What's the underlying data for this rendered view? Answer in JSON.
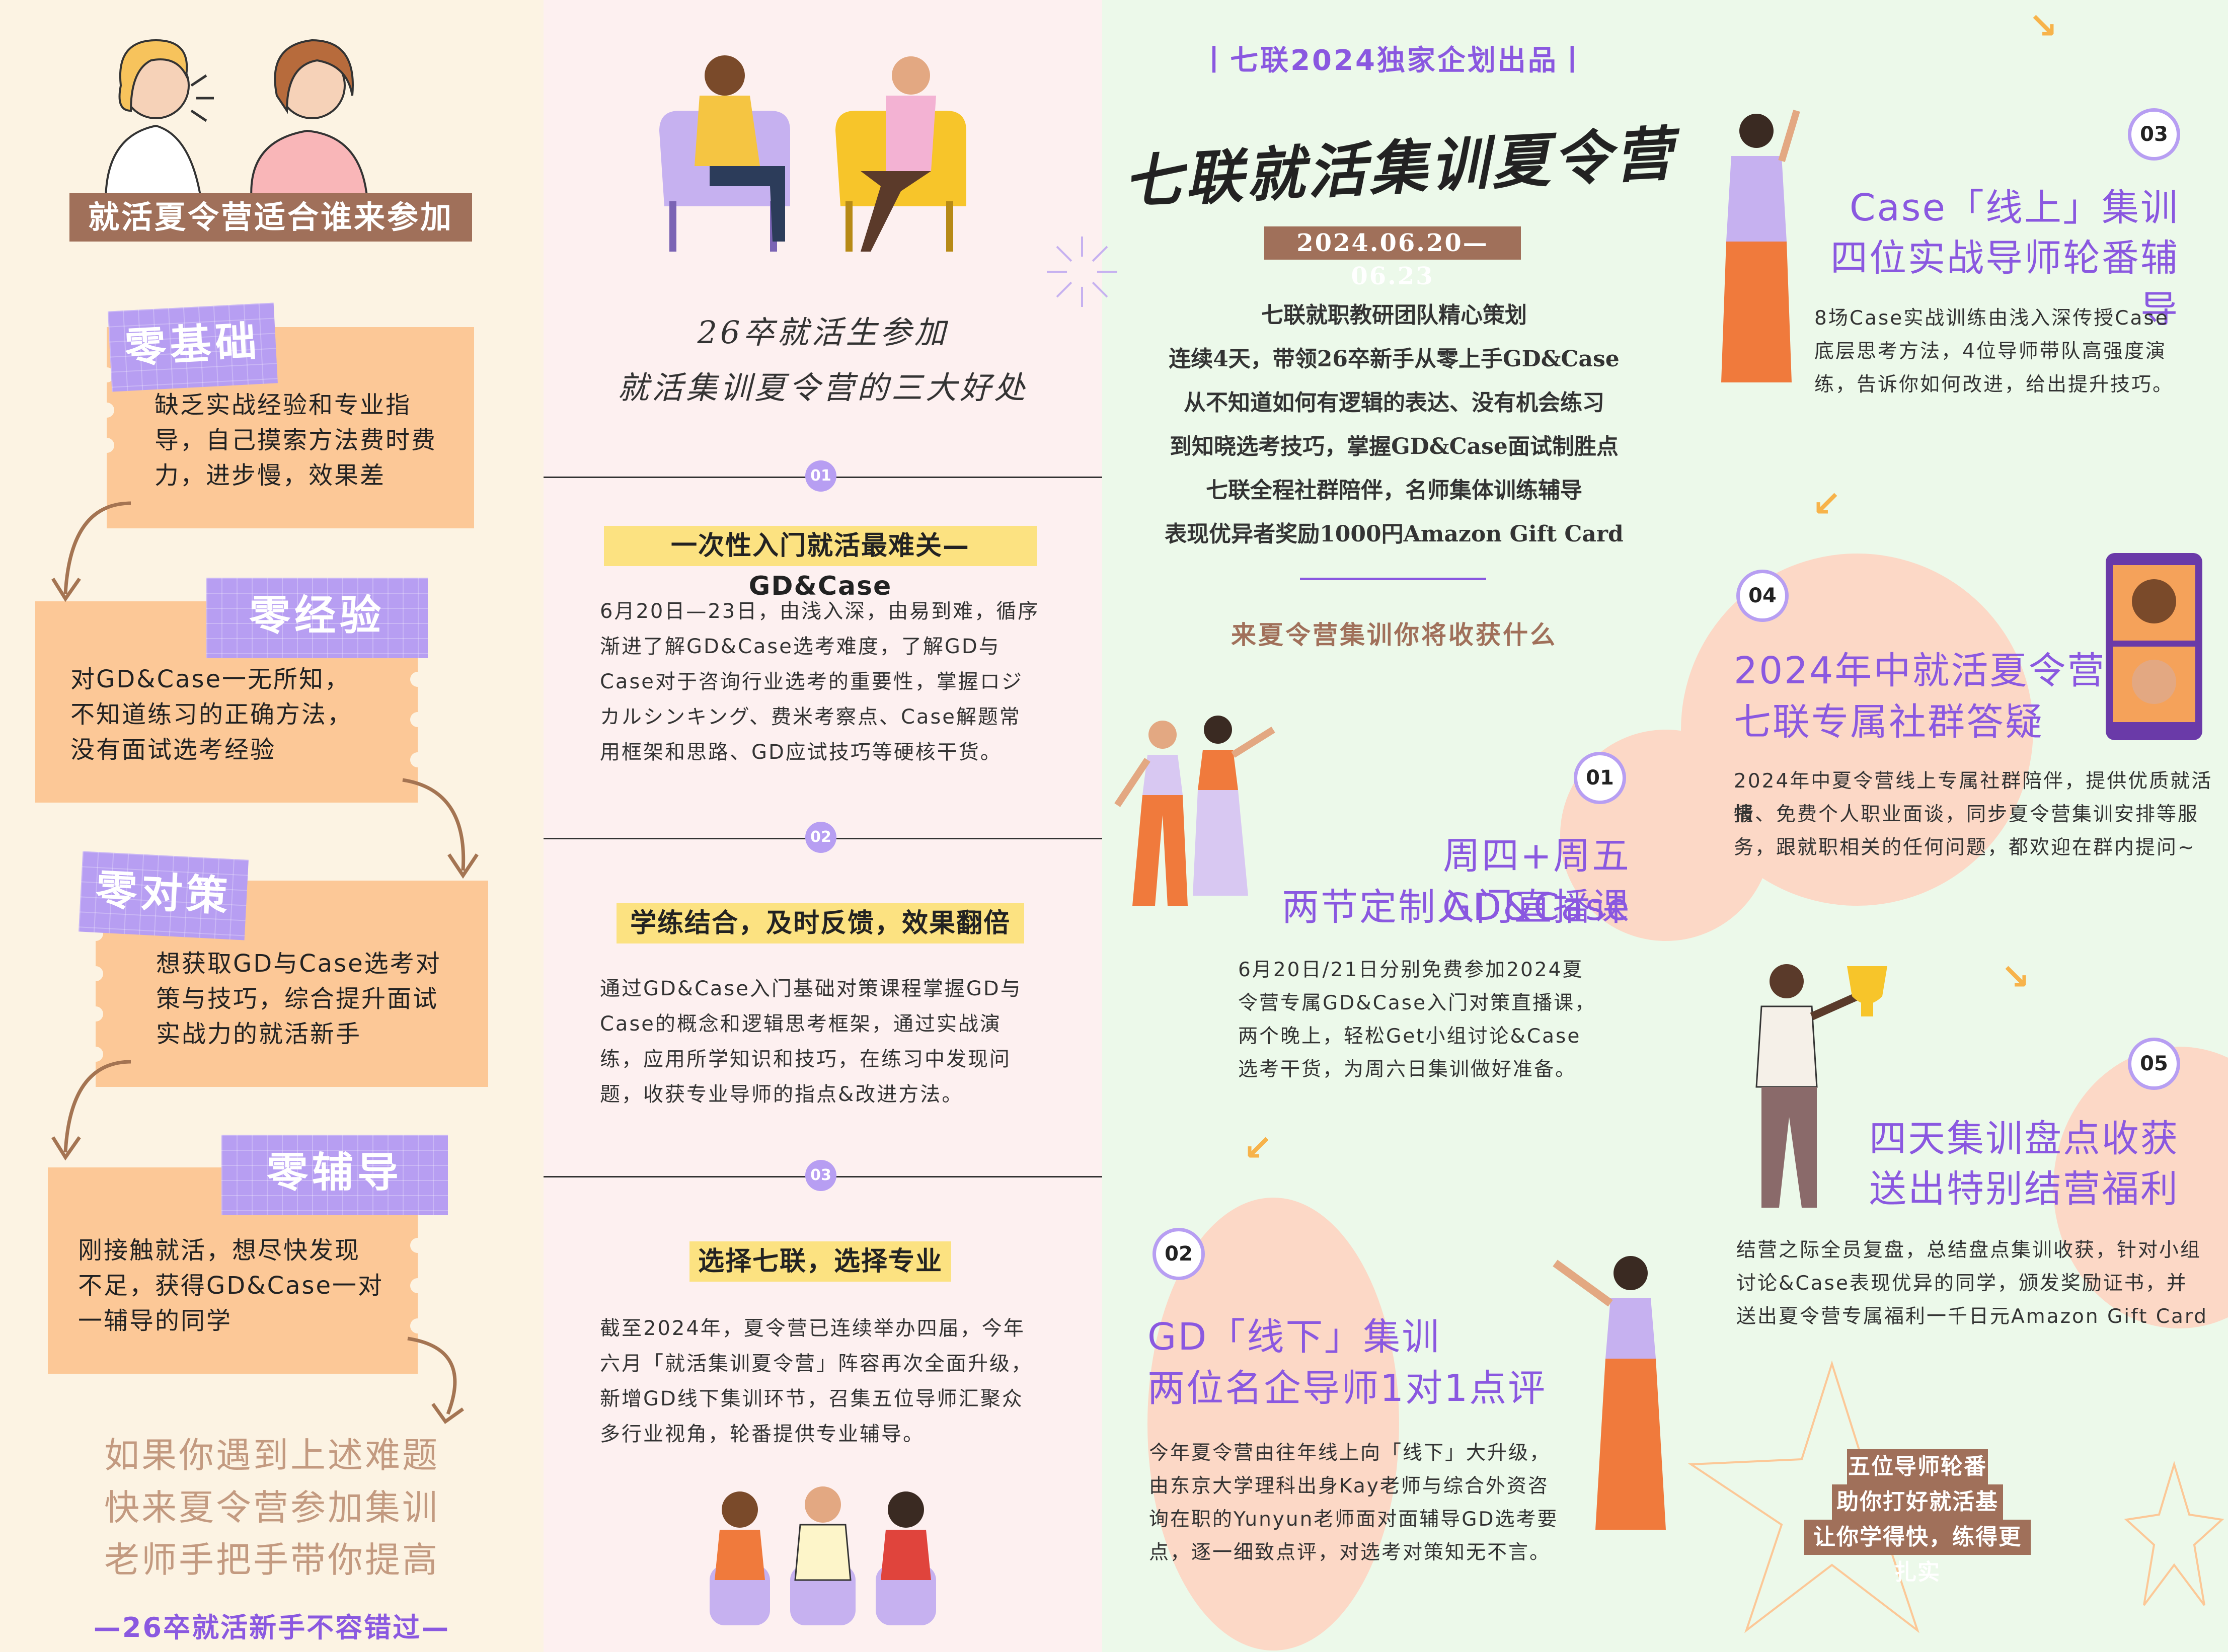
{
  "panel_left": {
    "title": "就活夏令营适合谁来参加",
    "cards": [
      {
        "tag": "零基础",
        "lines": [
          "缺乏实战经验和专业指",
          "导，自己摸索方法费时费",
          "力，进步慢，效果差"
        ]
      },
      {
        "tag": "零经验",
        "lines": [
          "对GD&Case一无所知，",
          "不知道练习的正确方法，",
          "没有面试选考经验"
        ]
      },
      {
        "tag": "零对策",
        "lines": [
          "想获取GD与Case选考对",
          "策与技巧，综合提升面试",
          "实战力的就活新手"
        ]
      },
      {
        "tag": "零辅导",
        "lines": [
          "刚接触就活，想尽快发现",
          "不足，获得GD&Case一对",
          "一辅导的同学"
        ]
      }
    ],
    "closing": [
      "如果你遇到上述难题",
      "快来夏令营参加集训",
      "老师手把手带你提高"
    ],
    "footer": "—26卒就活新手不容错过—"
  },
  "panel_mid": {
    "heading": [
      "26卒就活生参加",
      "就活集训夏令营的三大好处"
    ],
    "sections": [
      {
        "num": "01",
        "title": "一次性入门就活最难关—GD&Case",
        "lines": [
          "6月20日—23日，由浅入深，由易到难，循序",
          "渐进了解GD&Case选考难度，了解GD与",
          "Case对于咨询行业选考的重要性，掌握ロジ",
          "カルシンキング、费米考察点、Case解题常",
          "用框架和思路、GD应试技巧等硬核干货。"
        ]
      },
      {
        "num": "02",
        "title": "学练结合，及时反馈，效果翻倍",
        "lines": [
          "通过GD&Case入门基础对策课程掌握GD与",
          "Case的概念和逻辑思考框架，通过实战演",
          "练，应用所学知识和技巧，在练习中发现问",
          "题，收获专业导师的指点&改进方法。"
        ]
      },
      {
        "num": "03",
        "title": "选择七联，选择专业",
        "lines": [
          "截至2024年，夏令营已连续举办四届，今年",
          "六月「就活集训夏令营」阵容再次全面升级，",
          "新增GD线下集训环节，召集五位导师汇聚众",
          "多行业视角，轮番提供专业辅导。"
        ]
      }
    ]
  },
  "panel_right": {
    "brand": "丨七联2024独家企划出品丨",
    "main_title": "七联就活集训夏令营",
    "date": "2024.06.20—06.23",
    "intro": [
      "七联就职教研团队精心策划",
      "连续4天，带领26卒新手从零上手GD&Case",
      "从不知道如何有逻辑的表达、没有机会练习",
      "到知晓选考技巧，掌握GD&Case面试制胜点",
      "七联全程社群陪伴，名师集体训练辅导",
      "表现优异者奖励1000円Amazon Gift Card"
    ],
    "gain_heading": "来夏令营集训你将收获什么",
    "items": [
      {
        "num": "01",
        "title": [
          "周四+周五GD&Case",
          "两节定制入门直播课"
        ],
        "lines": [
          "6月20日/21日分别免费参加2024夏",
          "令营专属GD&Case入门对策直播课，",
          "两个晚上，轻松Get小组讨论&Case",
          "选考干货，为周六日集训做好准备。"
        ]
      },
      {
        "num": "02",
        "title": [
          "GD「线下」集训",
          "两位名企导师1对1点评"
        ],
        "lines": [
          "今年夏令营由往年线上向「线下」大升级，",
          "由东京大学理科出身Kay老师与综合外资咨",
          "询在职的Yunyun老师面对面辅导GD选考要",
          "点，逐一细致点评，对选考对策知无不言。"
        ]
      },
      {
        "num": "03",
        "title": [
          "Case「线上」集训",
          "四位实战导师轮番辅导"
        ],
        "lines": [
          "8场Case实战训练由浅入深传授Case",
          "底层思考方法，4位导师带队高强度演",
          "练，告诉你如何改进，给出提升技巧。"
        ]
      },
      {
        "num": "04",
        "title": [
          "2024年中就活夏令营",
          "七联专属社群答疑"
        ],
        "lines": [
          "2024年中夏令营线上专属社群陪伴，提供优质就活情",
          "报、免费个人职业面谈，同步夏令营集训安排等服",
          "务，跟就职相关的任何问题，都欢迎在群内提问~"
        ]
      },
      {
        "num": "05",
        "title": [
          "四天集训盘点收获",
          "送出特别结营福利"
        ],
        "lines": [
          "结营之际全员复盘，总结盘点集训收获，针对小组",
          "讨论&Case表现优异的同学，颁发奖励证书，并",
          "送出夏令营专属福利一千日元Amazon Gift Card"
        ]
      }
    ],
    "closing": [
      "五位导师轮番上阵",
      "助你打好就活基本功",
      "让你学得快，练得更扎实"
    ]
  }
}
